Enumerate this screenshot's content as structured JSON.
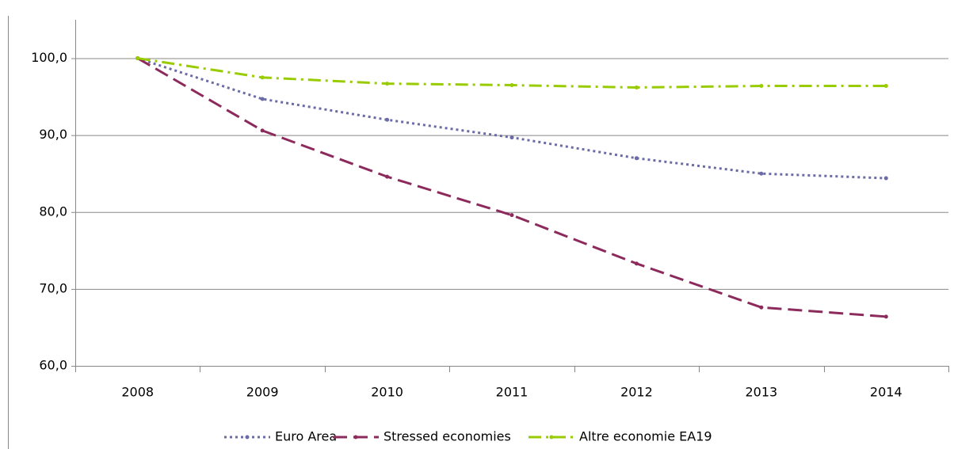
{
  "chart_data": {
    "type": "line",
    "categories": [
      "2008",
      "2009",
      "2010",
      "2011",
      "2012",
      "2013",
      "2014"
    ],
    "series": [
      {
        "name": "Euro Area",
        "color": "#6b6ba6",
        "dash": "dotted",
        "values": [
          100,
          94.7,
          92.0,
          89.7,
          87.0,
          85.0,
          84.4
        ]
      },
      {
        "name": "Stressed economies",
        "color": "#8c2a5c",
        "dash": "dashed",
        "values": [
          100,
          90.6,
          84.6,
          79.6,
          73.3,
          67.6,
          66.4
        ]
      },
      {
        "name": "Altre economie EA19",
        "color": "#99cc00",
        "dash": "dashdot",
        "values": [
          100,
          97.5,
          96.7,
          96.5,
          96.2,
          96.4,
          96.4
        ]
      }
    ],
    "ylim": [
      60,
      105
    ],
    "yticks": [
      {
        "value": 60,
        "label": "60,0"
      },
      {
        "value": 70,
        "label": "70,0"
      },
      {
        "value": 80,
        "label": "80,0"
      },
      {
        "value": 90,
        "label": "90,0"
      },
      {
        "value": 100,
        "label": "100,0"
      }
    ],
    "grid": true,
    "legend": "bottom"
  }
}
